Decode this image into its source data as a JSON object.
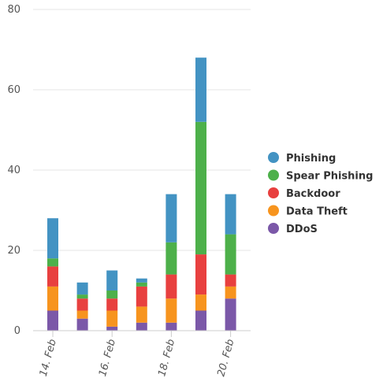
{
  "chart_data": {
    "type": "bar",
    "stacked": true,
    "grid": true,
    "legend_position": "right",
    "ylim": [
      0,
      80
    ],
    "y_ticks": [
      0,
      20,
      40,
      60,
      80
    ],
    "x_days": [
      14,
      15,
      16,
      17,
      18,
      19,
      20
    ],
    "x_tick_labels": [
      "14. Feb",
      "16. Feb",
      "18. Feb",
      "20. Feb"
    ],
    "series": [
      {
        "name": "DDoS",
        "color": "#7b58a8",
        "values": [
          5,
          3,
          1,
          2,
          2,
          5,
          8
        ]
      },
      {
        "name": "Data Theft",
        "color": "#f7941e",
        "values": [
          6,
          2,
          4,
          4,
          6,
          4,
          3
        ]
      },
      {
        "name": "Backdoor",
        "color": "#e8403f",
        "values": [
          5,
          3,
          3,
          5,
          6,
          10,
          3
        ]
      },
      {
        "name": "Spear Phishing",
        "color": "#4db04a",
        "values": [
          2,
          1,
          2,
          1,
          8,
          33,
          10
        ]
      },
      {
        "name": "Phishing",
        "color": "#4393c3",
        "values": [
          10,
          3,
          5,
          1,
          12,
          16,
          10
        ]
      }
    ],
    "legend_order": [
      "Phishing",
      "Spear Phishing",
      "Backdoor",
      "Data Theft",
      "DDoS"
    ]
  }
}
